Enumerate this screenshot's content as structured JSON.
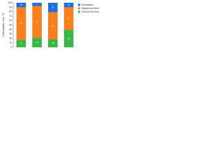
{
  "chart_data": {
    "type": "stacked-bar",
    "ylabel": "Cumulative cost, %",
    "categories": [
      null,
      null,
      null,
      null
    ],
    "series": [
      {
        "name": "Clinical services",
        "color": "#3cb54a",
        "values": [
          17,
          21,
          18,
          39
        ]
      },
      {
        "name": "Diagnostic tests",
        "color": "#f7811f",
        "values": [
          73,
          72,
          61,
          51
        ]
      },
      {
        "name": "Medication",
        "color": "#1e6fd9",
        "values": [
          10,
          7,
          21,
          10
        ]
      }
    ],
    "ylim": [
      0,
      100
    ],
    "yticks": [
      0,
      10,
      20,
      30,
      40,
      50,
      60,
      70,
      80,
      90,
      100
    ],
    "legend": "upper-right"
  }
}
